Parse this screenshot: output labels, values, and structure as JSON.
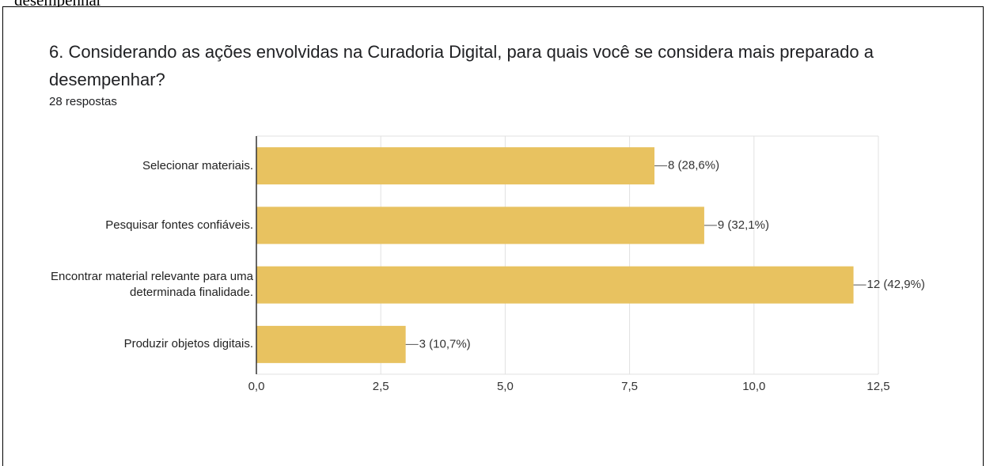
{
  "page_caption": "desempenhar",
  "chart_data": {
    "type": "barh",
    "title": "6. Considerando as ações envolvidas na Curadoria Digital, para quais você se considera mais preparado a desempenhar?",
    "subtitle": "28 respostas",
    "categories": [
      "Selecionar materiais.",
      "Pesquisar fontes confiáveis.",
      "Encontrar material relevante para uma determinada finalidade.",
      "Produzir objetos digitais."
    ],
    "values": [
      8,
      9,
      12,
      3
    ],
    "value_labels": [
      "8 (28,6%)",
      "9 (32,1%)",
      "12 (42,9%)",
      "3 (10,7%)"
    ],
    "color": "#e8c260",
    "xlim": [
      0,
      12.5
    ],
    "xticks": [
      {
        "value": 0,
        "label": "0,0"
      },
      {
        "value": 2.5,
        "label": "2,5"
      },
      {
        "value": 5,
        "label": "5,0"
      },
      {
        "value": 7.5,
        "label": "7,5"
      },
      {
        "value": 10,
        "label": "10,0"
      },
      {
        "value": 12.5,
        "label": "12,5"
      }
    ],
    "grid": true
  }
}
